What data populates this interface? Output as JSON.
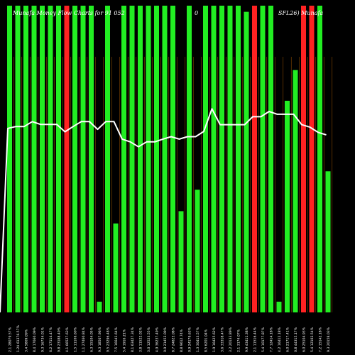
{
  "header": {
    "site": "Munafa",
    "chart_title": "Money Flow Charts for 91 052",
    "mid": "0",
    "symbol_fragment": "SFL26) Munafa"
  },
  "colors": {
    "background": "#000000",
    "up_bar": "#22ee22",
    "down_bar": "#ff2222",
    "line": "#ffffff",
    "grid_line": "#8a4a00"
  },
  "chart_data": {
    "type": "bar",
    "title": "",
    "xlabel": "",
    "ylabel": "",
    "grid": false,
    "ylim": [
      0,
      100
    ],
    "categories": [
      "2.1 28079.57%",
      "1.24 61376.57%",
      "3.4 5809.09%",
      "8.4 17660.09%",
      "9.3 16734.01%",
      "6.2 17114.47%",
      "9.8 23188.40%",
      "4.1 66527.63%",
      "1.5 11106.60%",
      "1.1 27460.84%",
      "6.3 15104.05%",
      "9.3 18507.96%",
      "9.5 23296.48%",
      "7.5 16641.64%",
      "5.4 1916.21%",
      "8.1 63427.34%",
      "3.8 11522.02%",
      "3.0 12523.55%",
      "4.9 36237.49%",
      "0.9 21453.09%",
      "8.7 24823.08%",
      "8.8 9612.74%",
      "0.9 24179.63%",
      "1.3 30413.57%",
      "8.5 6201.04%",
      "1.9 16425.62%",
      "3.6 33318.47%",
      "3.2 20133.89%",
      "2.1 3174.07%",
      "9.9 43411.38%",
      "2.1 11516.44%",
      "5.4 10177.87%",
      "7.7 12414.18%",
      "4.2 16412.18%",
      "6.0 21717.41%",
      "0.8 44315.17%",
      "6.0 25104.93%",
      "5.4 12102.54%",
      "7.2 15142.18%",
      "9.3 20158.03%"
    ],
    "series": [
      {
        "type": "bar",
        "values": [
          100,
          100,
          100,
          100,
          100,
          100,
          100,
          100,
          100,
          100,
          100,
          3.5,
          100,
          29,
          100,
          100,
          100,
          100,
          100,
          100,
          100,
          33,
          100,
          40,
          100,
          100,
          100,
          100,
          100,
          98,
          100,
          100,
          100,
          3.5,
          69,
          79,
          100,
          100,
          100,
          46
        ],
        "colors": [
          "up",
          "up",
          "up",
          "up",
          "up",
          "up",
          "up",
          "down",
          "up",
          "up",
          "up",
          "up",
          "up",
          "up",
          "up",
          "up",
          "up",
          "up",
          "up",
          "up",
          "up",
          "up",
          "up",
          "up",
          "up",
          "up",
          "up",
          "up",
          "up",
          "up",
          "down",
          "up",
          "up",
          "up",
          "up",
          "up",
          "down",
          "down",
          "up",
          "up"
        ]
      },
      {
        "type": "line",
        "values": [
          60,
          60.6,
          60.6,
          62.2,
          61.3,
          61.3,
          61.3,
          58.9,
          60.6,
          62.2,
          62.2,
          59.7,
          62.2,
          62.2,
          56.5,
          55.6,
          54.0,
          55.6,
          55.6,
          56.5,
          57.3,
          56.5,
          57.3,
          57.3,
          59.0,
          66.4,
          61.2,
          61.2,
          61.2,
          61.2,
          63.8,
          63.8,
          65.5,
          64.6,
          64.6,
          64.6,
          61.2,
          60.4,
          58.7,
          57.9
        ]
      }
    ]
  }
}
